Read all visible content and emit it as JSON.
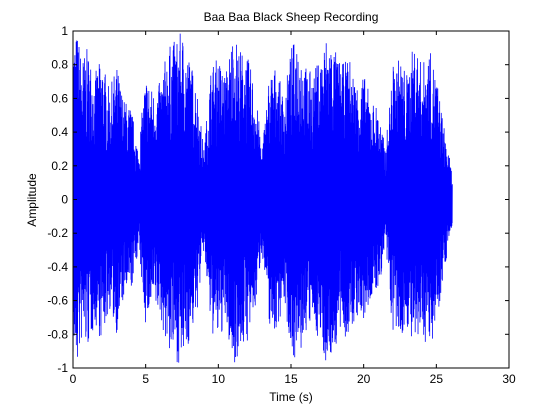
{
  "chart_data": {
    "type": "line",
    "title": "Baa Baa Black Sheep Recording",
    "xlabel": "Time (s)",
    "ylabel": "Amplitude",
    "xlim": [
      0,
      30
    ],
    "ylim": [
      -1,
      1
    ],
    "x_ticks": [
      "0",
      "5",
      "10",
      "15",
      "20",
      "25",
      "30"
    ],
    "y_ticks": [
      "1",
      "0.8",
      "0.6",
      "0.4",
      "0.2",
      "0",
      "-0.2",
      "-0.4",
      "-0.6",
      "-0.8",
      "-1"
    ],
    "grid": false,
    "legend": "none",
    "series": [
      {
        "color": "#0000ff",
        "signal_end_s": 26.1,
        "envelope": {
          "t_s": [
            0,
            0.3,
            0.6,
            1.0,
            1.5,
            2.0,
            2.5,
            3.0,
            3.5,
            4.0,
            4.5,
            5.0,
            5.5,
            6.0,
            6.5,
            7.0,
            7.5,
            8.0,
            8.5,
            9.0,
            9.5,
            10.0,
            10.5,
            11.0,
            11.5,
            12.0,
            12.5,
            13.0,
            13.5,
            14.0,
            14.5,
            15.0,
            15.5,
            16.0,
            16.5,
            17.0,
            17.5,
            18.0,
            18.5,
            19.0,
            19.5,
            20.0,
            20.5,
            21.0,
            21.5,
            22.0,
            22.5,
            23.0,
            23.5,
            24.0,
            24.5,
            25.0,
            25.5,
            26.1
          ],
          "peak_amplitude": [
            0.95,
            1.0,
            0.85,
            0.9,
            0.75,
            0.85,
            0.65,
            0.8,
            0.6,
            0.55,
            0.3,
            0.75,
            0.65,
            0.7,
            0.9,
            0.95,
            1.0,
            0.85,
            0.7,
            0.3,
            0.8,
            0.85,
            0.75,
            1.0,
            0.9,
            0.85,
            0.7,
            0.3,
            0.75,
            0.8,
            0.6,
            0.9,
            1.0,
            0.8,
            0.75,
            0.85,
            1.0,
            0.9,
            0.8,
            0.85,
            0.7,
            0.75,
            0.6,
            0.55,
            0.3,
            0.8,
            0.85,
            0.75,
            0.95,
            0.8,
            0.9,
            0.75,
            0.45,
            0.15
          ]
        }
      }
    ]
  }
}
